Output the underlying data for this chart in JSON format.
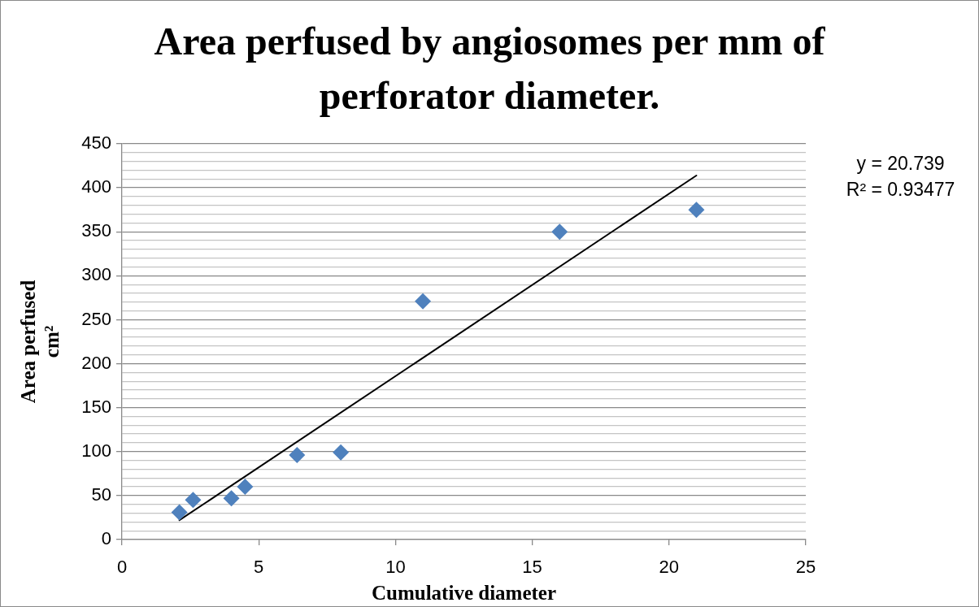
{
  "chart_data": {
    "type": "scatter",
    "title": "Area perfused by angiosomes per mm of perforator diameter.",
    "xlabel": "Cumulative diameter",
    "ylabel": "Area perfused cm²",
    "annotations": [
      "y = 20.739",
      "R² = 0.93477"
    ],
    "series": [
      {
        "type": "scatter",
        "color": "#4f81bd",
        "x": [
          2.1,
          2.6,
          4,
          4.5,
          6.4,
          8,
          11,
          16,
          21
        ],
        "values": [
          31,
          45,
          47,
          60,
          96,
          99,
          271,
          350,
          375
        ]
      },
      {
        "type": "line",
        "color": "#000000",
        "marker": "none",
        "x": [
          2.1,
          21
        ],
        "values": [
          22,
          414
        ]
      }
    ],
    "marker": "diamond",
    "xlim": [
      0,
      25
    ],
    "xticks": [
      0,
      5,
      10,
      15,
      20,
      25
    ],
    "ylim": [
      0,
      450
    ],
    "yticks": [
      0,
      {
        "value": 10,
        "label": null
      },
      {
        "value": 20,
        "label": null
      },
      {
        "value": 30,
        "label": null
      },
      {
        "value": 40,
        "label": null
      },
      50,
      {
        "value": 60,
        "label": null
      },
      {
        "value": 70,
        "label": null
      },
      {
        "value": 80,
        "label": null
      },
      {
        "value": 90,
        "label": null
      },
      100,
      {
        "value": 110,
        "label": null
      },
      {
        "value": 120,
        "label": null
      },
      {
        "value": 130,
        "label": null
      },
      {
        "value": 140,
        "label": null
      },
      150,
      {
        "value": 160,
        "label": null
      },
      {
        "value": 170,
        "label": null
      },
      {
        "value": 180,
        "label": null
      },
      {
        "value": 190,
        "label": null
      },
      200,
      {
        "value": 210,
        "label": null
      },
      {
        "value": 220,
        "label": null
      },
      {
        "value": 230,
        "label": null
      },
      {
        "value": 240,
        "label": null
      },
      250,
      {
        "value": 260,
        "label": null
      },
      {
        "value": 270,
        "label": null
      },
      {
        "value": 280,
        "label": null
      },
      {
        "value": 290,
        "label": null
      },
      300,
      {
        "value": 310,
        "label": null
      },
      {
        "value": 320,
        "label": null
      },
      {
        "value": 330,
        "label": null
      },
      {
        "value": 340,
        "label": null
      },
      350,
      {
        "value": 360,
        "label": null
      },
      {
        "value": 370,
        "label": null
      },
      {
        "value": 380,
        "label": null
      },
      {
        "value": 390,
        "label": null
      },
      400,
      {
        "value": 410,
        "label": null
      },
      {
        "value": 420,
        "label": null
      },
      {
        "value": 430,
        "label": null
      },
      {
        "value": 440,
        "label": null
      },
      450
    ],
    "grid": "y",
    "legend": false
  }
}
